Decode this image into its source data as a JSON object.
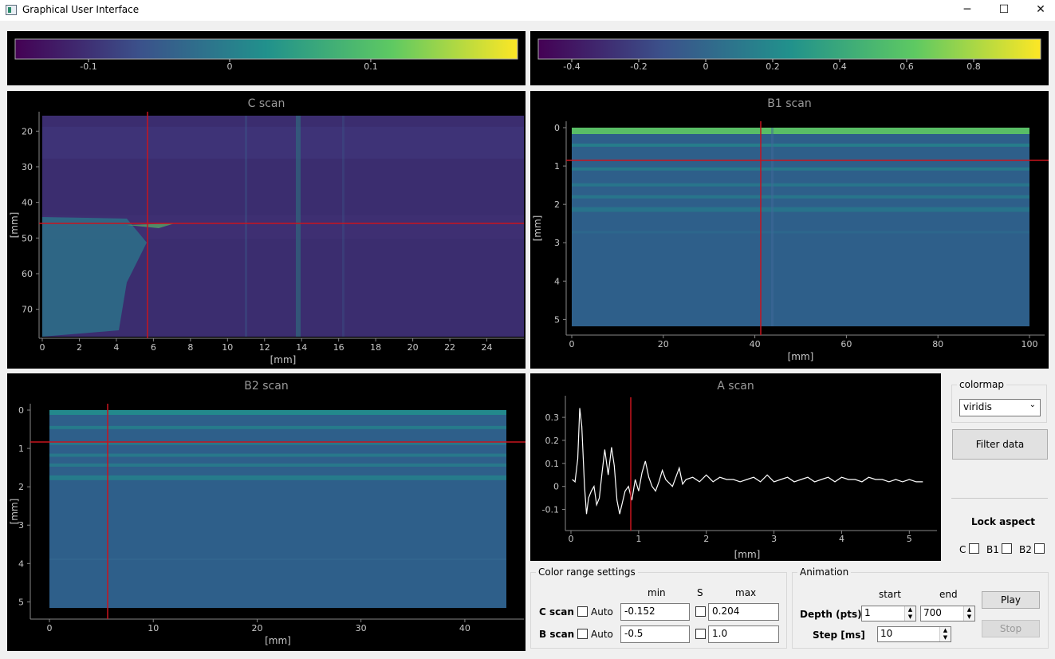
{
  "window": {
    "title": "Graphical User Interface",
    "minimize": "─",
    "maximize": "☐",
    "close": "✕"
  },
  "colorbars": {
    "c": {
      "ticks": [
        "-0.1",
        "0",
        "0.1"
      ],
      "range": [
        -0.152,
        0.204
      ]
    },
    "b": {
      "ticks": [
        "-0.4",
        "-0.2",
        "0",
        "0.2",
        "0.4",
        "0.6",
        "0.8"
      ],
      "range": [
        -0.5,
        1.0
      ]
    }
  },
  "plots": {
    "c": {
      "title": "C scan",
      "xlabel": "[mm]",
      "ylabel": "[mm]",
      "xticks": [
        "0",
        "2",
        "4",
        "6",
        "8",
        "10",
        "12",
        "14",
        "16",
        "18",
        "20",
        "22",
        "24"
      ],
      "yticks": [
        "20",
        "30",
        "40",
        "50",
        "60",
        "70"
      ]
    },
    "b1": {
      "title": "B1 scan",
      "xlabel": "[mm]",
      "ylabel": "[mm]",
      "xticks": [
        "0",
        "20",
        "40",
        "60",
        "80",
        "100"
      ],
      "yticks": [
        "0",
        "1",
        "2",
        "3",
        "4",
        "5"
      ]
    },
    "b2": {
      "title": "B2 scan",
      "xlabel": "[mm]",
      "ylabel": "[mm]",
      "xticks": [
        "0",
        "10",
        "20",
        "30",
        "40"
      ],
      "yticks": [
        "0",
        "1",
        "2",
        "3",
        "4",
        "5"
      ]
    },
    "a": {
      "title": "A scan",
      "xlabel": "[mm]",
      "xticks": [
        "0",
        "1",
        "2",
        "3",
        "4",
        "5"
      ],
      "yticks": [
        "0.3",
        "0.2",
        "0.1",
        "0",
        "-0.1"
      ]
    }
  },
  "chart_data": {
    "type": "line",
    "title": "A scan",
    "xlabel": "[mm]",
    "xlim": [
      0,
      5.3
    ],
    "ylim": [
      -0.15,
      0.38
    ],
    "series": [
      {
        "x": [
          0.02,
          0.06,
          0.1,
          0.13,
          0.16,
          0.2,
          0.23,
          0.26,
          0.3,
          0.34,
          0.38,
          0.42,
          0.46,
          0.5,
          0.55,
          0.6,
          0.64,
          0.68,
          0.72,
          0.76,
          0.8,
          0.85,
          0.9,
          0.95,
          1.0,
          1.05,
          1.1,
          1.15,
          1.2,
          1.25,
          1.3,
          1.35,
          1.4,
          1.5,
          1.6,
          1.65,
          1.7,
          1.8,
          1.9,
          2.0,
          2.1,
          2.2,
          2.3,
          2.4,
          2.5,
          2.6,
          2.7,
          2.8,
          2.9,
          3.0,
          3.1,
          3.2,
          3.3,
          3.4,
          3.5,
          3.6,
          3.7,
          3.8,
          3.9,
          4.0,
          4.1,
          4.2,
          4.3,
          4.4,
          4.5,
          4.6,
          4.7,
          4.8,
          4.9,
          5.0,
          5.1,
          5.2
        ],
        "y": [
          0.03,
          0.02,
          0.12,
          0.34,
          0.26,
          0.0,
          -0.12,
          -0.05,
          -0.02,
          0.0,
          -0.08,
          -0.05,
          0.06,
          0.16,
          0.05,
          0.17,
          0.09,
          -0.06,
          -0.12,
          -0.07,
          -0.02,
          0.0,
          -0.06,
          0.03,
          -0.02,
          0.06,
          0.11,
          0.04,
          0.0,
          -0.02,
          0.02,
          0.07,
          0.03,
          0.0,
          0.08,
          0.01,
          0.03,
          0.04,
          0.02,
          0.05,
          0.02,
          0.04,
          0.03,
          0.03,
          0.02,
          0.03,
          0.04,
          0.02,
          0.05,
          0.02,
          0.03,
          0.04,
          0.02,
          0.03,
          0.04,
          0.02,
          0.03,
          0.04,
          0.02,
          0.04,
          0.03,
          0.03,
          0.02,
          0.04,
          0.03,
          0.03,
          0.02,
          0.03,
          0.02,
          0.03,
          0.02,
          0.02
        ]
      }
    ]
  },
  "controls": {
    "colormap_label": "colormap",
    "colormap_value": "viridis",
    "filter_button": "Filter data",
    "lock_aspect": "Lock aspect",
    "lock_c": "C",
    "lock_b1": "B1",
    "lock_b2": "B2"
  },
  "color_range": {
    "title": "Color range settings",
    "min_header": "min",
    "s_header": "S",
    "max_header": "max",
    "c_label": "C scan",
    "b_label": "B scan",
    "auto": "Auto",
    "c_min": "-0.152",
    "c_max": "0.204",
    "b_min": "-0.5",
    "b_max": "1.0"
  },
  "animation": {
    "title": "Animation",
    "start_header": "start",
    "end_header": "end",
    "depth_label": "Depth (pts)",
    "step_label": "Step [ms]",
    "depth_start": "1",
    "depth_end": "700",
    "step": "10",
    "play": "Play",
    "stop": "Stop"
  },
  "colors": {
    "cursor": "#c8141e",
    "trace": "#ffffff",
    "viridis": [
      "#440154",
      "#3b528b",
      "#21918c",
      "#5ec962",
      "#fde725"
    ]
  }
}
